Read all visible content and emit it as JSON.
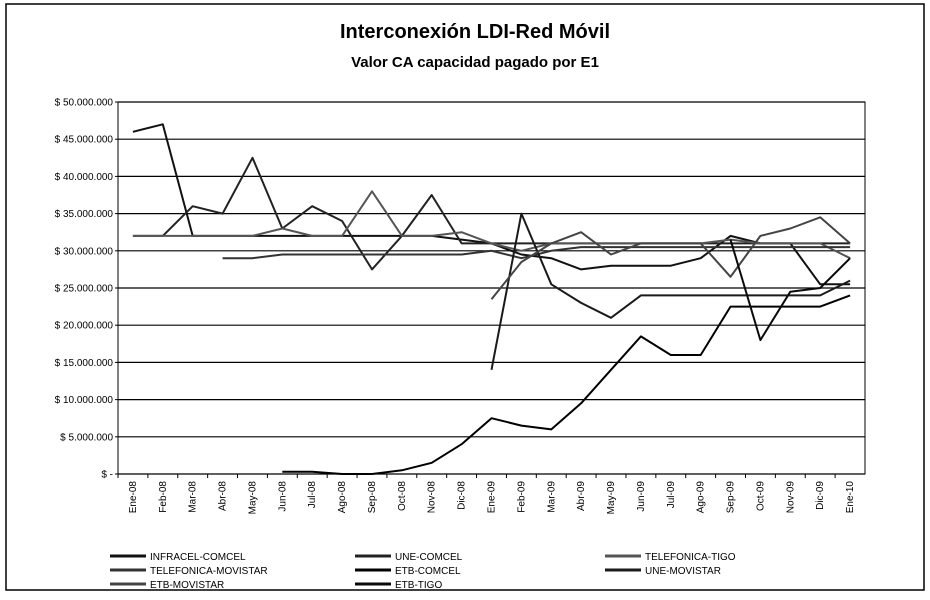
{
  "chart_data": {
    "type": "line",
    "title": "Interconexión LDI-Red Móvil",
    "subtitle": "Valor CA capacidad pagado por E1",
    "categories": [
      "Ene-08",
      "Feb-08",
      "Mar-08",
      "Abr-08",
      "May-08",
      "Jun-08",
      "Jul-08",
      "Ago-08",
      "Sep-08",
      "Oct-08",
      "Nov-08",
      "Dic-08",
      "Ene-09",
      "Feb-09",
      "Mar-09",
      "Abr-09",
      "May-09",
      "Jun-09",
      "Jul-09",
      "Ago-09",
      "Sep-09",
      "Oct-09",
      "Nov-09",
      "Dic-09",
      "Ene-10"
    ],
    "ylim": [
      0,
      50000000
    ],
    "yticks": [
      {
        "value": 0,
        "label": "$ -"
      },
      {
        "value": 5000000,
        "label": "$ 5.000.000"
      },
      {
        "value": 10000000,
        "label": "$ 10.000.000"
      },
      {
        "value": 15000000,
        "label": "$ 15.000.000"
      },
      {
        "value": 20000000,
        "label": "$ 20.000.000"
      },
      {
        "value": 25000000,
        "label": "$ 25.000.000"
      },
      {
        "value": 30000000,
        "label": "$ 30.000.000"
      },
      {
        "value": 35000000,
        "label": "$ 35.000.000"
      },
      {
        "value": 40000000,
        "label": "$ 40.000.000"
      },
      {
        "value": 45000000,
        "label": "$ 45.000.000"
      },
      {
        "value": 50000000,
        "label": "$ 50.000.000"
      }
    ],
    "grid": true,
    "legend": "bottom",
    "series": [
      {
        "name": "INFRACEL-COMCEL",
        "color": "#111111",
        "values": [
          46000000,
          47000000,
          32000000,
          32000000,
          32000000,
          32000000,
          32000000,
          32000000,
          32000000,
          32000000,
          32000000,
          31500000,
          31000000,
          29500000,
          29000000,
          27500000,
          28000000,
          28000000,
          28000000,
          29000000,
          32000000,
          31000000,
          31000000,
          25500000,
          25500000
        ]
      },
      {
        "name": "UNE-COMCEL",
        "color": "#222222",
        "values": [
          32000000,
          32000000,
          36000000,
          35000000,
          42500000,
          33000000,
          36000000,
          34000000,
          27500000,
          32000000,
          37500000,
          31000000,
          31000000,
          31000000,
          31000000,
          31000000,
          31000000,
          31000000,
          31000000,
          31000000,
          31000000,
          31000000,
          31000000,
          31000000,
          31000000
        ]
      },
      {
        "name": "TELEFONICA-TIGO",
        "color": "#555555",
        "values": [
          32000000,
          32000000,
          32000000,
          32000000,
          32000000,
          33000000,
          32000000,
          32000000,
          38000000,
          32000000,
          32000000,
          32500000,
          31000000,
          30000000,
          31000000,
          31000000,
          31000000,
          31000000,
          31000000,
          31000000,
          31500000,
          31000000,
          31000000,
          31000000,
          29000000
        ]
      },
      {
        "name": "TELEFONICA-MOVISTAR",
        "color": "#333333",
        "values": [
          null,
          null,
          null,
          29000000,
          29000000,
          29500000,
          29500000,
          29500000,
          29500000,
          29500000,
          29500000,
          29500000,
          30000000,
          29000000,
          30000000,
          30500000,
          30500000,
          30500000,
          30500000,
          30500000,
          30500000,
          30500000,
          30500000,
          30500000,
          30500000
        ]
      },
      {
        "name": "ETB-COMCEL",
        "color": "#000000",
        "values": [
          null,
          null,
          null,
          null,
          null,
          300000,
          300000,
          0,
          0,
          500000,
          1500000,
          4000000,
          7500000,
          6500000,
          6000000,
          9500000,
          14000000,
          18500000,
          16000000,
          16000000,
          22500000,
          22500000,
          22500000,
          22500000,
          24000000
        ]
      },
      {
        "name": "UNE-MOVISTAR",
        "color": "#1a1a1a",
        "values": [
          null,
          null,
          null,
          null,
          null,
          null,
          null,
          null,
          null,
          null,
          null,
          null,
          14000000,
          35000000,
          25500000,
          23000000,
          21000000,
          24000000,
          24000000,
          24000000,
          24000000,
          24000000,
          24000000,
          24000000,
          26000000
        ]
      },
      {
        "name": "ETB-MOVISTAR",
        "color": "#444444",
        "values": [
          null,
          null,
          null,
          null,
          null,
          null,
          null,
          null,
          null,
          null,
          null,
          null,
          23500000,
          28500000,
          31000000,
          32500000,
          29500000,
          31000000,
          31000000,
          31000000,
          26500000,
          32000000,
          33000000,
          34500000,
          31000000
        ]
      },
      {
        "name": "ETB-TIGO",
        "color": "#0a0a0a",
        "values": [
          null,
          null,
          null,
          null,
          null,
          null,
          null,
          null,
          null,
          null,
          null,
          null,
          null,
          null,
          null,
          null,
          null,
          null,
          null,
          null,
          31500000,
          18000000,
          24500000,
          25000000,
          29000000
        ]
      }
    ]
  }
}
